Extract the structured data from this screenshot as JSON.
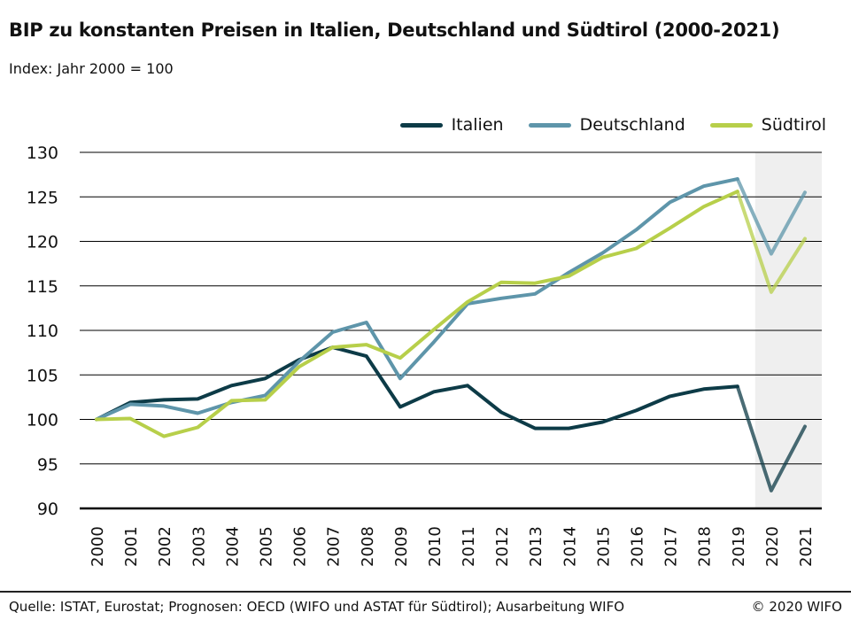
{
  "title": "BIP zu konstanten Preisen in Italien, Deutschland und Südtirol (2000-2021)",
  "subtitle": "Index: Jahr 2000 = 100",
  "source": "Quelle: ISTAT, Eurostat; Prognosen: OECD (WIFO und ASTAT für Südtirol); Ausarbeitung WIFO",
  "copyright": "© 2020 WIFO",
  "colors": {
    "italien": "#0d3b47",
    "deutschland": "#5e95aa",
    "suedtirol": "#b7cf4a",
    "forecast_band": "#efefef"
  },
  "chart_data": {
    "type": "line",
    "title": "BIP zu konstanten Preisen in Italien, Deutschland und Südtirol (2000-2021)",
    "ylabel": "",
    "xlabel": "",
    "ylim": [
      90,
      130
    ],
    "yticks": [
      90,
      95,
      100,
      105,
      110,
      115,
      120,
      125,
      130
    ],
    "grid": true,
    "legend_position": "top-right",
    "forecast_years": [
      "2020",
      "2021"
    ],
    "x": [
      "2000",
      "2001",
      "2002",
      "2003",
      "2004",
      "2005",
      "2006",
      "2007",
      "2008",
      "2009",
      "2010",
      "2011",
      "2012",
      "2013",
      "2014",
      "2015",
      "2016",
      "2017",
      "2018",
      "2019",
      "2020",
      "2021"
    ],
    "series": [
      {
        "name": "Italien",
        "color": "#0d3b47",
        "values": [
          100,
          101.9,
          102.2,
          102.3,
          103.8,
          104.6,
          106.7,
          108.1,
          107.1,
          101.4,
          103.1,
          103.8,
          100.8,
          99.0,
          99.0,
          99.7,
          101.0,
          102.6,
          103.4,
          103.7,
          92.0,
          99.2
        ]
      },
      {
        "name": "Deutschland",
        "color": "#5e95aa",
        "values": [
          100,
          101.7,
          101.5,
          100.7,
          101.9,
          102.7,
          106.5,
          109.8,
          110.9,
          104.6,
          108.7,
          113.0,
          113.6,
          114.1,
          116.5,
          118.7,
          121.3,
          124.4,
          126.2,
          127.0,
          118.6,
          125.5
        ]
      },
      {
        "name": "Südtirol",
        "color": "#b7cf4a",
        "values": [
          100,
          100.1,
          98.1,
          99.1,
          102.1,
          102.2,
          105.9,
          108.1,
          108.4,
          106.9,
          110.1,
          113.2,
          115.4,
          115.3,
          116.1,
          118.2,
          119.2,
          121.5,
          123.9,
          125.6,
          114.3,
          120.3
        ]
      }
    ]
  }
}
